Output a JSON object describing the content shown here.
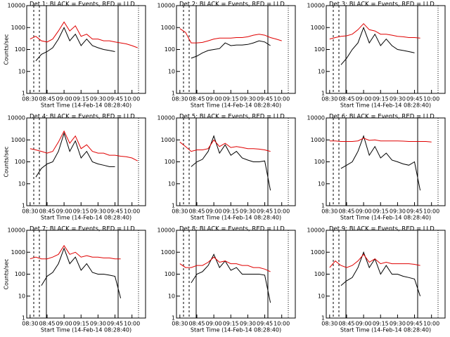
{
  "chart_data": [
    {
      "type": "line",
      "title": "Det 1: BLACK = Events, RED = LLD",
      "xlabel": "Start Time (14-Feb-14 08:28:40)",
      "ylabel": "Counts/sec",
      "log_y": true,
      "grid": false,
      "x": [
        "08:30",
        "08:35",
        "08:40",
        "08:45",
        "08:50",
        "08:55",
        "09:00",
        "09:05",
        "09:10",
        "09:15",
        "09:20",
        "09:25",
        "09:30",
        "09:35",
        "09:40",
        "09:45",
        "09:50",
        "09:55",
        "10:00",
        "10:05"
      ],
      "xlim": [
        "08:27",
        "10:12"
      ],
      "xticks": [
        "08:30",
        "08:45",
        "09:00",
        "09:15",
        "09:30",
        "09:45",
        "10:00"
      ],
      "ylim": [
        1,
        10000
      ],
      "yticks": [
        1,
        10,
        100,
        1000,
        10000
      ],
      "series": [
        {
          "name": "Events",
          "color": "#000000",
          "values": [
            null,
            30,
            60,
            80,
            120,
            300,
            1000,
            250,
            500,
            150,
            300,
            150,
            120,
            100,
            90,
            80,
            null,
            null,
            null,
            null
          ]
        },
        {
          "name": "LLD",
          "color": "#e00000",
          "values": [
            300,
            400,
            250,
            220,
            300,
            700,
            1800,
            700,
            1200,
            400,
            500,
            300,
            300,
            250,
            250,
            220,
            200,
            180,
            150,
            120
          ]
        }
      ]
    },
    {
      "type": "line",
      "title": "Det 2: BLACK = Events, RED = LLD",
      "xlabel": "Start Time (14-Feb-14 08:28:40)",
      "log_y": true,
      "grid": false,
      "x": [
        "08:30",
        "08:35",
        "08:40",
        "08:45",
        "08:50",
        "08:55",
        "09:00",
        "09:05",
        "09:10",
        "09:15",
        "09:20",
        "09:25",
        "09:30",
        "09:35",
        "09:40",
        "09:45",
        "09:50",
        "09:55",
        "10:00",
        "10:05"
      ],
      "xlim": [
        "08:27",
        "10:12"
      ],
      "xticks": [
        "08:30",
        "08:45",
        "09:00",
        "09:15",
        "09:30",
        "09:45",
        "10:00"
      ],
      "ylim": [
        1,
        10000
      ],
      "yticks": [
        1,
        10,
        100,
        1000,
        10000
      ],
      "series": [
        {
          "name": "Events",
          "color": "#000000",
          "values": [
            null,
            null,
            40,
            50,
            70,
            90,
            100,
            110,
            200,
            150,
            160,
            160,
            170,
            200,
            250,
            220,
            150,
            null,
            null,
            null
          ]
        },
        {
          "name": "LLD",
          "color": "#e00000",
          "values": [
            900,
            600,
            200,
            200,
            210,
            250,
            300,
            330,
            330,
            330,
            350,
            350,
            380,
            450,
            500,
            450,
            350,
            300,
            250,
            null
          ]
        }
      ]
    },
    {
      "type": "line",
      "title": "Det 3: BLACK = Events, RED = LLD",
      "xlabel": "Start Time (14-Feb-14 08:28:40)",
      "log_y": true,
      "grid": false,
      "x": [
        "08:30",
        "08:35",
        "08:40",
        "08:45",
        "08:50",
        "08:55",
        "09:00",
        "09:05",
        "09:10",
        "09:15",
        "09:20",
        "09:25",
        "09:30",
        "09:35",
        "09:40",
        "09:45",
        "09:50",
        "09:55",
        "10:00",
        "10:05"
      ],
      "xlim": [
        "08:27",
        "10:12"
      ],
      "xticks": [
        "08:30",
        "08:45",
        "09:00",
        "09:15",
        "09:30",
        "09:45",
        "10:00"
      ],
      "ylim": [
        1,
        10000
      ],
      "yticks": [
        1,
        10,
        100,
        1000,
        10000
      ],
      "series": [
        {
          "name": "Events",
          "color": "#000000",
          "values": [
            null,
            null,
            20,
            40,
            100,
            200,
            1000,
            200,
            500,
            150,
            300,
            150,
            100,
            90,
            80,
            70,
            null,
            null,
            null,
            null
          ]
        },
        {
          "name": "LLD",
          "color": "#e00000",
          "values": [
            300,
            350,
            400,
            420,
            500,
            800,
            1500,
            800,
            700,
            500,
            500,
            450,
            400,
            380,
            350,
            350,
            330,
            null,
            null,
            null
          ]
        }
      ]
    },
    {
      "type": "line",
      "title": "Det 4: BLACK = Events, RED = LLD",
      "xlabel": "Start Time (14-Feb-14 08:28:40)",
      "ylabel": "Counts/sec",
      "log_y": true,
      "grid": false,
      "x": [
        "08:30",
        "08:35",
        "08:40",
        "08:45",
        "08:50",
        "08:55",
        "09:00",
        "09:05",
        "09:10",
        "09:15",
        "09:20",
        "09:25",
        "09:30",
        "09:35",
        "09:40",
        "09:45",
        "09:50",
        "09:55",
        "10:00",
        "10:05"
      ],
      "xlim": [
        "08:27",
        "10:12"
      ],
      "xticks": [
        "08:30",
        "08:45",
        "09:00",
        "09:15",
        "09:30",
        "09:45",
        "10:00"
      ],
      "ylim": [
        1,
        10000
      ],
      "yticks": [
        1,
        10,
        100,
        1000,
        10000
      ],
      "series": [
        {
          "name": "Events",
          "color": "#000000",
          "values": [
            null,
            20,
            50,
            80,
            100,
            300,
            2000,
            300,
            900,
            150,
            300,
            100,
            80,
            70,
            60,
            60,
            null,
            null,
            null,
            null
          ]
        },
        {
          "name": "LLD",
          "color": "#e00000",
          "values": [
            400,
            350,
            300,
            250,
            300,
            800,
            2500,
            700,
            1500,
            400,
            600,
            300,
            250,
            250,
            200,
            200,
            180,
            170,
            150,
            110
          ]
        }
      ]
    },
    {
      "type": "line",
      "title": "Det 5: BLACK = Events, RED = LLD",
      "xlabel": "Start Time (14-Feb-14 08:28:40)",
      "log_y": true,
      "grid": false,
      "x": [
        "08:30",
        "08:35",
        "08:40",
        "08:45",
        "08:50",
        "08:55",
        "09:00",
        "09:05",
        "09:10",
        "09:15",
        "09:20",
        "09:25",
        "09:30",
        "09:35",
        "09:40",
        "09:45",
        "09:50",
        "09:55",
        "10:00",
        "10:05"
      ],
      "xlim": [
        "08:27",
        "10:12"
      ],
      "xticks": [
        "08:30",
        "08:45",
        "09:00",
        "09:15",
        "09:30",
        "09:45",
        "10:00"
      ],
      "ylim": [
        1,
        10000
      ],
      "yticks": [
        1,
        10,
        100,
        1000,
        10000
      ],
      "series": [
        {
          "name": "Events",
          "color": "#000000",
          "values": [
            null,
            null,
            60,
            100,
            130,
            300,
            1500,
            250,
            600,
            200,
            300,
            150,
            120,
            100,
            100,
            110,
            5,
            null,
            null,
            null
          ]
        },
        {
          "name": "LLD",
          "color": "#e00000",
          "values": [
            800,
            500,
            300,
            350,
            350,
            400,
            1000,
            500,
            700,
            450,
            500,
            450,
            400,
            400,
            380,
            350,
            300,
            null,
            null,
            null
          ]
        }
      ]
    },
    {
      "type": "line",
      "title": "Det 6: BLACK = Events, RED = LLD",
      "xlabel": "Start Time (14-Feb-14 08:28:40)",
      "log_y": true,
      "grid": false,
      "x": [
        "08:30",
        "08:35",
        "08:40",
        "08:45",
        "08:50",
        "08:55",
        "09:00",
        "09:05",
        "09:10",
        "09:15",
        "09:20",
        "09:25",
        "09:30",
        "09:35",
        "09:40",
        "09:45",
        "09:50",
        "09:55",
        "10:00",
        "10:05"
      ],
      "xlim": [
        "08:27",
        "10:12"
      ],
      "xticks": [
        "08:30",
        "08:45",
        "09:00",
        "09:15",
        "09:30",
        "09:45",
        "10:00"
      ],
      "ylim": [
        1,
        10000
      ],
      "yticks": [
        1,
        10,
        100,
        1000,
        10000
      ],
      "series": [
        {
          "name": "Events",
          "color": "#000000",
          "values": [
            null,
            null,
            50,
            70,
            100,
            300,
            1500,
            200,
            500,
            150,
            250,
            120,
            100,
            80,
            70,
            100,
            5,
            null,
            null,
            null
          ]
        },
        {
          "name": "LLD",
          "color": "#e00000",
          "values": [
            900,
            900,
            850,
            850,
            850,
            900,
            1200,
            950,
            1000,
            900,
            900,
            900,
            900,
            880,
            850,
            850,
            850,
            850,
            800,
            null
          ]
        }
      ]
    },
    {
      "type": "line",
      "title": "Det 7: BLACK = Events, RED = LLD",
      "xlabel": "Start Time (14-Feb-14 08:28:40)",
      "ylabel": "Counts/sec",
      "log_y": true,
      "grid": false,
      "x": [
        "08:30",
        "08:35",
        "08:40",
        "08:45",
        "08:50",
        "08:55",
        "09:00",
        "09:05",
        "09:10",
        "09:15",
        "09:20",
        "09:25",
        "09:30",
        "09:35",
        "09:40",
        "09:45",
        "09:50",
        "09:55",
        "10:00",
        "10:05"
      ],
      "xlim": [
        "08:27",
        "10:12"
      ],
      "xticks": [
        "08:30",
        "08:45",
        "09:00",
        "09:15",
        "09:30",
        "09:45",
        "10:00"
      ],
      "ylim": [
        1,
        10000
      ],
      "yticks": [
        1,
        10,
        100,
        1000,
        10000
      ],
      "series": [
        {
          "name": "Events",
          "color": "#000000",
          "values": [
            null,
            null,
            30,
            80,
            120,
            300,
            1500,
            300,
            600,
            150,
            300,
            120,
            100,
            100,
            90,
            80,
            8,
            null,
            null,
            null
          ]
        },
        {
          "name": "LLD",
          "color": "#e00000",
          "values": [
            500,
            600,
            500,
            500,
            600,
            800,
            2000,
            800,
            1000,
            600,
            700,
            600,
            600,
            550,
            550,
            500,
            500,
            null,
            null,
            null
          ]
        }
      ]
    },
    {
      "type": "line",
      "title": "Det 8: BLACK = Events, RED = LLD",
      "xlabel": "Start Time (14-Feb-14 08:28:40)",
      "log_y": true,
      "grid": false,
      "x": [
        "08:30",
        "08:35",
        "08:40",
        "08:45",
        "08:50",
        "08:55",
        "09:00",
        "09:05",
        "09:10",
        "09:15",
        "09:20",
        "09:25",
        "09:30",
        "09:35",
        "09:40",
        "09:45",
        "09:50",
        "09:55",
        "10:00",
        "10:05"
      ],
      "xlim": [
        "08:27",
        "10:12"
      ],
      "xticks": [
        "08:30",
        "08:45",
        "09:00",
        "09:15",
        "09:30",
        "09:45",
        "10:00"
      ],
      "ylim": [
        1,
        10000
      ],
      "yticks": [
        1,
        10,
        100,
        1000,
        10000
      ],
      "series": [
        {
          "name": "Events",
          "color": "#000000",
          "values": [
            null,
            null,
            40,
            100,
            130,
            250,
            800,
            200,
            400,
            150,
            200,
            100,
            100,
            100,
            100,
            90,
            5,
            null,
            null,
            null
          ]
        },
        {
          "name": "LLD",
          "color": "#e00000",
          "values": [
            300,
            200,
            200,
            250,
            250,
            350,
            600,
            350,
            400,
            300,
            300,
            250,
            250,
            200,
            200,
            170,
            130,
            null,
            null,
            null
          ]
        }
      ]
    },
    {
      "type": "line",
      "title": "Det 9: BLACK = Events, RED = LLD",
      "xlabel": "Start Time (14-Feb-14 08:28:40)",
      "log_y": true,
      "grid": false,
      "x": [
        "08:30",
        "08:35",
        "08:40",
        "08:45",
        "08:50",
        "08:55",
        "09:00",
        "09:05",
        "09:10",
        "09:15",
        "09:20",
        "09:25",
        "09:30",
        "09:35",
        "09:40",
        "09:45",
        "09:50",
        "09:55",
        "10:00",
        "10:05"
      ],
      "xlim": [
        "08:27",
        "10:12"
      ],
      "xticks": [
        "08:30",
        "08:45",
        "09:00",
        "09:15",
        "09:30",
        "09:45",
        "10:00"
      ],
      "ylim": [
        1,
        10000
      ],
      "yticks": [
        1,
        10,
        100,
        1000,
        10000
      ],
      "series": [
        {
          "name": "Events",
          "color": "#000000",
          "values": [
            null,
            null,
            30,
            50,
            70,
            200,
            1000,
            200,
            500,
            100,
            250,
            100,
            100,
            80,
            70,
            60,
            10,
            null,
            null,
            null
          ]
        },
        {
          "name": "LLD",
          "color": "#e00000",
          "values": [
            200,
            400,
            250,
            200,
            250,
            400,
            800,
            350,
            500,
            300,
            350,
            300,
            300,
            300,
            300,
            280,
            250,
            null,
            null,
            null
          ]
        }
      ]
    }
  ]
}
